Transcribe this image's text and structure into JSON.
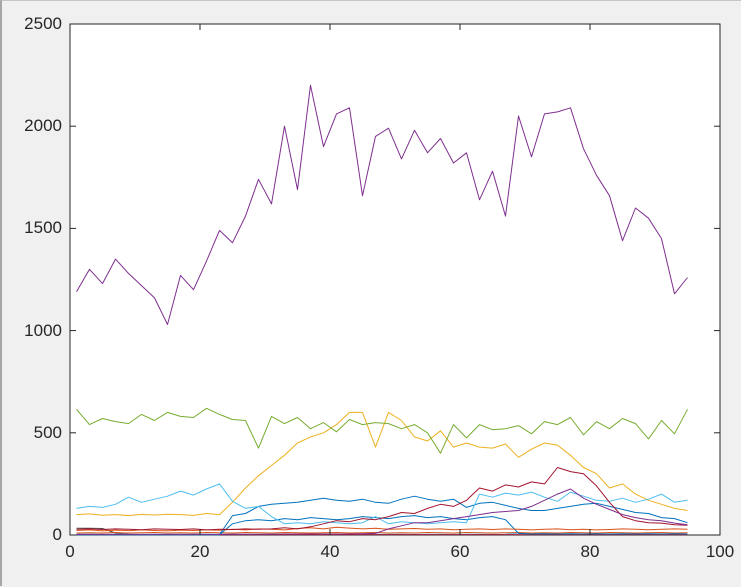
{
  "figure": {
    "background_color": "#f0f0f0",
    "plot_background_color": "#ffffff",
    "axis_color": "#262626",
    "tick_label_color": "#262626"
  },
  "chart_data": {
    "type": "line",
    "title": "",
    "xlabel": "",
    "ylabel": "",
    "legend": null,
    "grid": false,
    "xlim": [
      0,
      100
    ],
    "ylim": [
      0,
      2500
    ],
    "xticks": [
      0,
      20,
      40,
      60,
      80,
      100
    ],
    "yticks": [
      0,
      500,
      1000,
      1500,
      2000,
      2500
    ],
    "x": [
      1,
      3,
      5,
      7,
      9,
      11,
      13,
      15,
      17,
      19,
      21,
      23,
      25,
      27,
      29,
      31,
      33,
      35,
      37,
      39,
      41,
      43,
      45,
      47,
      49,
      51,
      53,
      55,
      57,
      59,
      61,
      63,
      65,
      67,
      69,
      71,
      73,
      75,
      77,
      79,
      81,
      83,
      85,
      87,
      89,
      91,
      93,
      95
    ],
    "series": [
      {
        "name": "dark-start-segment",
        "color": "#4d4d4d",
        "values": [
          33,
          33,
          32,
          10,
          4,
          null,
          null,
          null,
          null,
          null,
          null,
          null,
          null,
          null,
          null,
          null,
          null,
          null,
          null,
          null,
          null,
          null,
          null,
          null,
          null,
          null,
          null,
          null,
          null,
          null,
          null,
          null,
          null,
          null,
          null,
          null,
          null,
          null,
          null,
          null,
          null,
          null,
          null,
          null,
          null,
          null,
          null,
          null
        ]
      },
      {
        "name": "cyan-low",
        "color": "#4DBEEE",
        "values": [
          4,
          4,
          3,
          4,
          4,
          3,
          4,
          4,
          3,
          4,
          4,
          3,
          4,
          4,
          3,
          4,
          4,
          3,
          4,
          4,
          3,
          4,
          4,
          3,
          4,
          4,
          3,
          4,
          4,
          3,
          4,
          4,
          3,
          4,
          10,
          8,
          4,
          3,
          4,
          4,
          3,
          4,
          4,
          3,
          4,
          4,
          3,
          4
        ]
      },
      {
        "name": "orange-low",
        "color": "#D95319",
        "values": [
          10,
          11,
          10,
          12,
          10,
          11,
          12,
          10,
          11,
          10,
          12,
          11,
          10,
          12,
          11,
          10,
          12,
          11,
          10,
          11,
          12,
          10,
          11,
          12,
          10,
          11,
          10,
          12,
          11,
          10,
          12,
          11,
          10,
          11,
          12,
          10,
          11,
          10,
          12,
          11,
          10,
          12,
          11,
          10,
          11,
          12,
          10,
          11
        ]
      },
      {
        "name": "darkred-low",
        "color": "#A2142F",
        "values": [
          2,
          2,
          2,
          2,
          2,
          2,
          2,
          2,
          2,
          2,
          2,
          2,
          2,
          2,
          2,
          2,
          2,
          2,
          2,
          2,
          2,
          2,
          2,
          2,
          2,
          2,
          2,
          2,
          2,
          2,
          2,
          2,
          2,
          2,
          2,
          2,
          2,
          2,
          2,
          2,
          2,
          2,
          2,
          2,
          2,
          2,
          2,
          2
        ]
      },
      {
        "name": "blue-lower",
        "color": "#0072BD",
        "values": [
          1,
          1,
          1,
          1,
          1,
          1,
          1,
          1,
          1,
          1,
          1,
          1,
          55,
          70,
          75,
          70,
          80,
          75,
          85,
          80,
          75,
          80,
          90,
          85,
          80,
          90,
          95,
          85,
          90,
          80,
          75,
          85,
          90,
          75,
          8,
          5,
          6,
          5,
          6,
          5,
          6,
          5,
          6,
          5,
          6,
          5,
          6,
          5
        ]
      },
      {
        "name": "orange-main",
        "color": "#D95319",
        "values": [
          22,
          25,
          20,
          24,
          21,
          25,
          22,
          20,
          24,
          22,
          25,
          23,
          28,
          25,
          30,
          28,
          25,
          32,
          35,
          30,
          38,
          34,
          30,
          33,
          28,
          30,
          32,
          28,
          30,
          26,
          28,
          30,
          27,
          30,
          28,
          25,
          28,
          30,
          26,
          28,
          25,
          27,
          30,
          28,
          26,
          28,
          30,
          28
        ]
      },
      {
        "name": "blue-upper",
        "color": "#0072BD",
        "values": [
          2,
          2,
          2,
          2,
          2,
          2,
          2,
          2,
          2,
          2,
          2,
          2,
          95,
          105,
          140,
          150,
          155,
          160,
          170,
          180,
          170,
          165,
          175,
          160,
          155,
          175,
          190,
          175,
          165,
          175,
          135,
          155,
          160,
          145,
          130,
          120,
          120,
          130,
          140,
          150,
          155,
          140,
          125,
          110,
          105,
          85,
          80,
          60
        ]
      },
      {
        "name": "yellow-main",
        "color": "#EDB120",
        "values": [
          100,
          103,
          97,
          100,
          95,
          101,
          98,
          102,
          100,
          96,
          105,
          100,
          160,
          230,
          290,
          340,
          390,
          450,
          480,
          500,
          540,
          600,
          600,
          430,
          600,
          560,
          480,
          460,
          510,
          430,
          450,
          430,
          425,
          445,
          380,
          420,
          450,
          440,
          390,
          330,
          300,
          230,
          250,
          200,
          170,
          150,
          130,
          120
        ]
      },
      {
        "name": "cyan-main",
        "color": "#4DBEEE",
        "values": [
          130,
          140,
          135,
          150,
          185,
          160,
          175,
          190,
          215,
          195,
          225,
          250,
          165,
          130,
          140,
          90,
          55,
          60,
          55,
          65,
          60,
          55,
          60,
          90,
          55,
          65,
          60,
          55,
          60,
          65,
          60,
          200,
          185,
          205,
          195,
          210,
          185,
          165,
          210,
          190,
          170,
          165,
          180,
          160,
          175,
          200,
          160,
          170
        ]
      },
      {
        "name": "darkred-main",
        "color": "#A2142F",
        "values": [
          28,
          30,
          27,
          30,
          28,
          26,
          30,
          28,
          27,
          30,
          25,
          28,
          27,
          30,
          28,
          30,
          35,
          30,
          40,
          55,
          70,
          65,
          80,
          75,
          90,
          110,
          105,
          130,
          150,
          140,
          170,
          230,
          215,
          245,
          235,
          260,
          250,
          330,
          310,
          300,
          240,
          160,
          90,
          70,
          60,
          58,
          50,
          48
        ]
      },
      {
        "name": "purple-low",
        "color": "#7E2F8E",
        "values": [
          3,
          3,
          3,
          3,
          3,
          3,
          3,
          3,
          3,
          3,
          3,
          3,
          4,
          4,
          4,
          4,
          5,
          5,
          5,
          5,
          5,
          5,
          6,
          8,
          30,
          45,
          60,
          60,
          70,
          80,
          90,
          100,
          110,
          115,
          120,
          140,
          170,
          200,
          225,
          180,
          150,
          125,
          100,
          85,
          75,
          70,
          58,
          50
        ]
      },
      {
        "name": "green-main",
        "color": "#77AC30",
        "values": [
          615,
          540,
          570,
          555,
          545,
          590,
          560,
          600,
          580,
          575,
          620,
          590,
          565,
          560,
          425,
          580,
          545,
          575,
          520,
          550,
          505,
          565,
          540,
          550,
          545,
          520,
          540,
          500,
          400,
          540,
          475,
          540,
          515,
          520,
          535,
          495,
          555,
          540,
          575,
          490,
          555,
          520,
          570,
          545,
          470,
          560,
          495,
          615
        ]
      },
      {
        "name": "purple-main",
        "color": "#7E2F8E",
        "values": [
          1190,
          1300,
          1230,
          1350,
          1280,
          1220,
          1160,
          1030,
          1270,
          1200,
          1340,
          1490,
          1430,
          1560,
          1740,
          1620,
          2000,
          1690,
          2200,
          1900,
          2060,
          2090,
          1660,
          1950,
          1990,
          1840,
          1980,
          1870,
          1940,
          1820,
          1870,
          1640,
          1780,
          1560,
          2050,
          1850,
          2060,
          2070,
          2090,
          1890,
          1760,
          1660,
          1440,
          1600,
          1550,
          1450,
          1180,
          1260
        ]
      }
    ]
  }
}
